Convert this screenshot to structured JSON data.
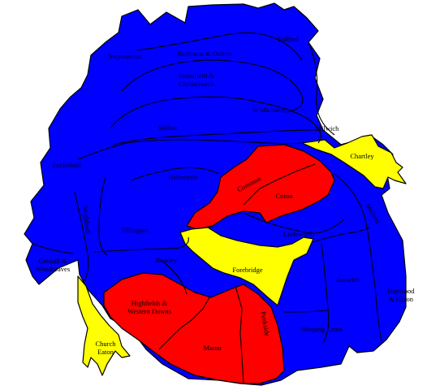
{
  "colors": {
    "blue": "#0000ff",
    "red": "#ff0000",
    "yellow": "#ffff00"
  },
  "labels": {
    "fulford": "Fulford",
    "swynnerton": "Swynnerton",
    "barlaston_oulton": "Barlaston & Oulton",
    "stonefield": "Stonefield &",
    "christchurch": "Christchurch",
    "st_michaels": "St Michaels",
    "walton": "Walton",
    "milwich": "Milwich",
    "chartley": "Chartley",
    "eccleshall": "Eccleshall",
    "holmcroft": "Holmcroft",
    "common": "Common",
    "coton": "Coton",
    "milford": "Milford",
    "seighford": "Seighford",
    "tillington": "Tillington",
    "littleworth": "Littleworth",
    "gnosall_1": "Gnosall &",
    "gnosall_2": "Woodseaves",
    "rowley": "Rowley",
    "forebridge": "Forebridge",
    "baswich": "Baswich",
    "haywood_1": "Haywood",
    "haywood_2": "& Hixon",
    "highfields_1": "Highfields &",
    "highfields_2": "Western Downs",
    "penkside": "Penkside",
    "weeping_cross": "Weeping Cross",
    "church_eaton_1": "Church",
    "church_eaton_2": "Eaton",
    "manor": "Manor"
  }
}
